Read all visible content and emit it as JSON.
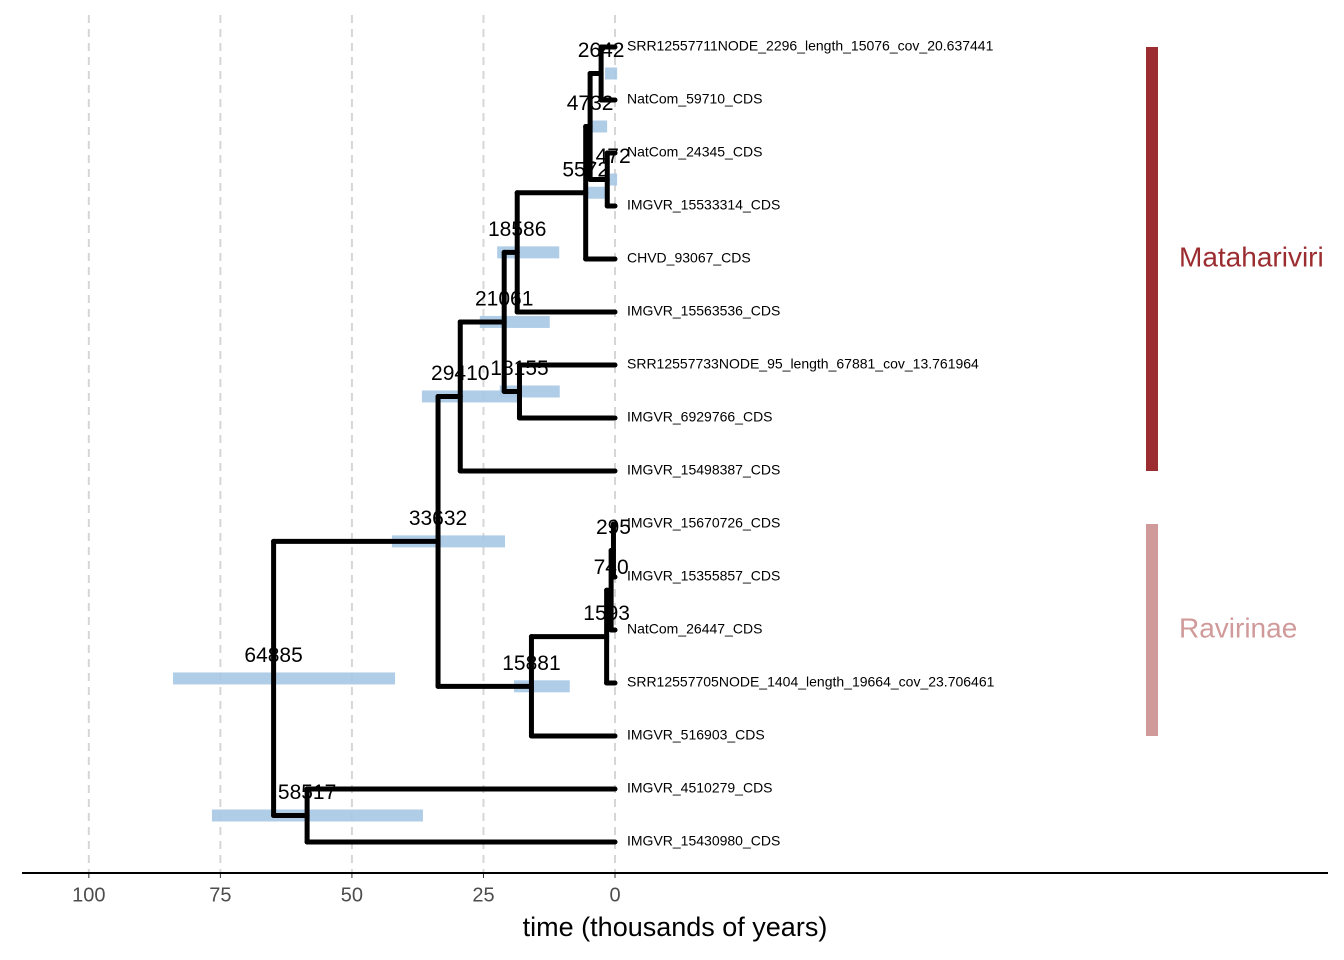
{
  "chart_data": {
    "type": "timetree",
    "x_label": "time (thousands of years)",
    "xlim": [
      112.7,
      -135.5
    ],
    "xticks": [
      100,
      75,
      50,
      25,
      0
    ],
    "grid": true,
    "branch_color": "#000000",
    "hpd_color": "#a7c8e6",
    "tips": [
      {
        "label": "SRR12557711NODE_2296_length_15076_cov_20.637441",
        "age": 0
      },
      {
        "label": "NatCom_59710_CDS",
        "age": 0
      },
      {
        "label": "NatCom_24345_CDS",
        "age": 0
      },
      {
        "label": "IMGVR_15533314_CDS",
        "age": 0
      },
      {
        "label": "CHVD_93067_CDS",
        "age": 0
      },
      {
        "label": "IMGVR_15563536_CDS",
        "age": 0
      },
      {
        "label": "SRR12557733NODE_95_length_67881_cov_13.761964",
        "age": 0
      },
      {
        "label": "IMGVR_6929766_CDS",
        "age": 0
      },
      {
        "label": "IMGVR_15498387_CDS",
        "age": 0
      },
      {
        "label": "IMGVR_15670726_CDS",
        "age": 0
      },
      {
        "label": "IMGVR_15355857_CDS",
        "age": 0
      },
      {
        "label": "NatCom_26447_CDS",
        "age": 0
      },
      {
        "label": "SRR12557705NODE_1404_length_19664_cov_23.706461",
        "age": 0
      },
      {
        "label": "IMGVR_516903_CDS",
        "age": 0
      },
      {
        "label": "IMGVR_4510279_CDS",
        "age": 0
      },
      {
        "label": "IMGVR_15430980_CDS",
        "age": 0
      }
    ],
    "nodes": [
      {
        "age": 2.642,
        "age_label": "2642",
        "hpd": [
          1.9,
          -0.4
        ],
        "children": [
          {
            "tip": 0
          },
          {
            "tip": 1
          }
        ]
      },
      {
        "age": 1.472,
        "age_label": "1472",
        "hpd": [
          1.0,
          -0.4
        ],
        "children": [
          {
            "tip": 2
          },
          {
            "tip": 3
          }
        ]
      },
      {
        "age": 4.732,
        "age_label": "4732",
        "hpd": [
          4.4,
          1.5
        ],
        "children": [
          {
            "node": 0
          },
          {
            "node": 1
          }
        ]
      },
      {
        "age": 5.572,
        "age_label": "5572",
        "hpd": [
          5.3,
          1.9
        ],
        "children": [
          {
            "node": 2
          },
          {
            "tip": 4
          }
        ]
      },
      {
        "age": 18.586,
        "age_label": "18586",
        "hpd": [
          22.4,
          10.6
        ],
        "children": [
          {
            "node": 3
          },
          {
            "tip": 5
          }
        ]
      },
      {
        "age": 18.155,
        "age_label": "18155",
        "hpd": [
          21.9,
          10.5
        ],
        "children": [
          {
            "tip": 6
          },
          {
            "tip": 7
          }
        ]
      },
      {
        "age": 21.061,
        "age_label": "21061",
        "hpd": [
          25.7,
          12.4
        ],
        "children": [
          {
            "node": 4
          },
          {
            "node": 5
          }
        ]
      },
      {
        "age": 29.41,
        "age_label": "29410",
        "hpd": [
          36.7,
          18.1
        ],
        "children": [
          {
            "node": 6
          },
          {
            "tip": 8
          }
        ]
      },
      {
        "age": 0.295,
        "age_label": "295",
        "hpd": [
          0.5,
          0.1
        ],
        "children": [
          {
            "tip": 9
          },
          {
            "tip": 10
          }
        ]
      },
      {
        "age": 0.74,
        "age_label": "740",
        "hpd": [
          1.1,
          0.4
        ],
        "children": [
          {
            "node": 8
          },
          {
            "tip": 11
          }
        ]
      },
      {
        "age": 1.593,
        "age_label": "1593",
        "hpd": [
          2.0,
          1.1
        ],
        "children": [
          {
            "node": 9
          },
          {
            "tip": 12
          }
        ]
      },
      {
        "age": 15.881,
        "age_label": "15881",
        "hpd": [
          19.2,
          8.6
        ],
        "children": [
          {
            "node": 10
          },
          {
            "tip": 13
          }
        ]
      },
      {
        "age": 33.632,
        "age_label": "33632",
        "hpd": [
          42.4,
          20.9
        ],
        "children": [
          {
            "node": 7
          },
          {
            "node": 11
          }
        ]
      },
      {
        "age": 58.517,
        "age_label": "58517",
        "hpd": [
          76.6,
          36.5
        ],
        "children": [
          {
            "tip": 14
          },
          {
            "tip": 15
          }
        ]
      },
      {
        "age": 64.885,
        "age_label": "64885",
        "hpd": [
          84.0,
          41.8
        ],
        "children": [
          {
            "node": 12
          },
          {
            "node": 13
          }
        ]
      }
    ],
    "clades": [
      {
        "name": "Matahariviri",
        "color": "#9b2d30",
        "tips": [
          0,
          8
        ]
      },
      {
        "name": "Ravirinae",
        "color": "#d09a9a",
        "tips": [
          9,
          13
        ]
      }
    ]
  }
}
